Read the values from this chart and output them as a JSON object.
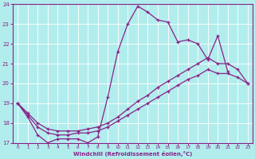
{
  "xlabel": "Windchill (Refroidissement éolien,°C)",
  "bg_color": "#b2eded",
  "grid_color": "#ffffff",
  "line_color": "#882288",
  "xlim_min": -0.5,
  "xlim_max": 23.5,
  "ylim_min": 17,
  "ylim_max": 24,
  "xticks": [
    0,
    1,
    2,
    3,
    4,
    5,
    6,
    7,
    8,
    9,
    10,
    11,
    12,
    13,
    14,
    15,
    16,
    17,
    18,
    19,
    20,
    21,
    22,
    23
  ],
  "yticks": [
    17,
    18,
    19,
    20,
    21,
    22,
    23,
    24
  ],
  "curves": [
    {
      "x": [
        0,
        1,
        2,
        3,
        4,
        5,
        6,
        7,
        8,
        9,
        10,
        11,
        12,
        13,
        14,
        15,
        16,
        17,
        18,
        19,
        20,
        21
      ],
      "y": [
        19.0,
        18.3,
        17.4,
        17.0,
        17.2,
        17.2,
        17.2,
        17.0,
        17.3,
        19.3,
        21.6,
        23.0,
        23.9,
        23.6,
        23.2,
        23.1,
        22.1,
        22.2,
        22.0,
        21.2,
        22.4,
        20.6
      ],
      "has_markers": true
    },
    {
      "x": [
        0,
        1,
        2,
        3,
        4,
        5,
        6,
        7,
        8,
        9,
        10,
        11,
        12,
        13,
        14,
        15,
        16,
        17,
        18,
        19,
        20,
        21,
        22,
        23
      ],
      "y": [
        19.0,
        18.4,
        17.8,
        17.5,
        17.4,
        17.4,
        17.5,
        17.5,
        17.6,
        17.8,
        18.1,
        18.4,
        18.7,
        19.0,
        19.3,
        19.6,
        19.9,
        20.2,
        20.4,
        20.7,
        20.5,
        20.5,
        20.3,
        20.0
      ],
      "has_markers": false
    },
    {
      "x": [
        0,
        1,
        2,
        3,
        4,
        5,
        6,
        7,
        8,
        9,
        10,
        11,
        12,
        13,
        14,
        15,
        16,
        17,
        18,
        19,
        20,
        21,
        22,
        23
      ],
      "y": [
        19.0,
        18.5,
        18.0,
        17.7,
        17.6,
        17.6,
        17.6,
        17.7,
        17.8,
        18.0,
        18.3,
        18.7,
        19.1,
        19.4,
        19.8,
        20.1,
        20.4,
        20.7,
        21.0,
        21.3,
        21.0,
        21.0,
        20.7,
        20.0
      ],
      "has_markers": false
    }
  ]
}
